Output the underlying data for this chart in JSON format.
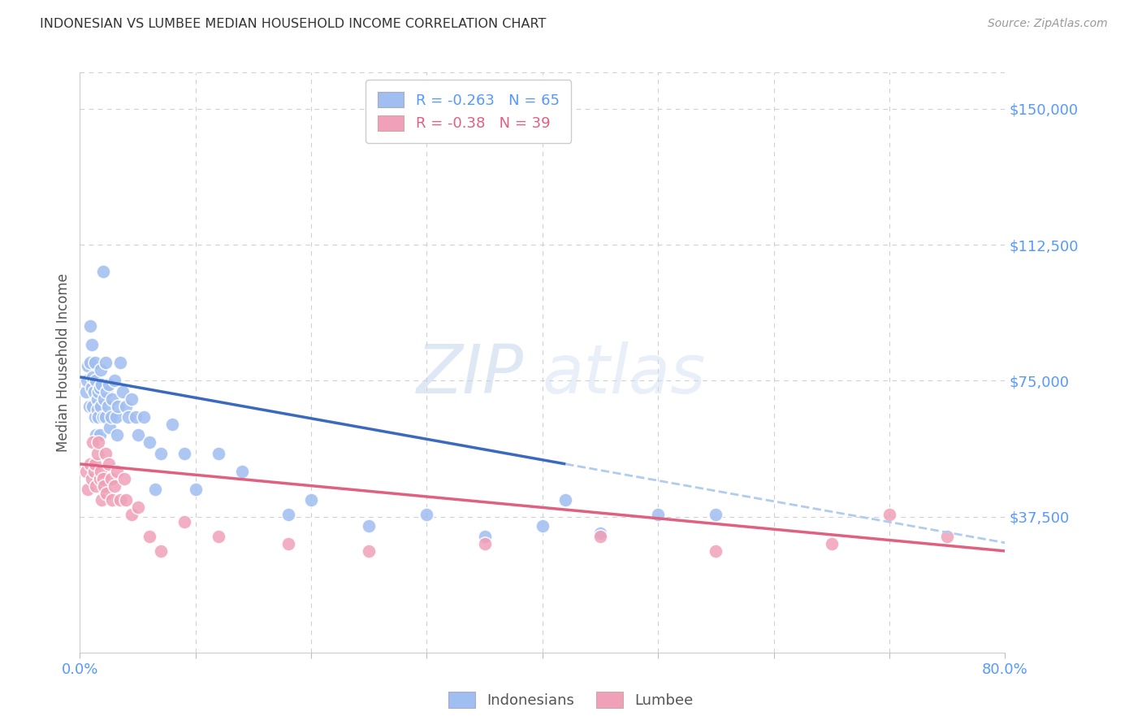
{
  "title": "INDONESIAN VS LUMBEE MEDIAN HOUSEHOLD INCOME CORRELATION CHART",
  "source": "Source: ZipAtlas.com",
  "ylabel": "Median Household Income",
  "xlim": [
    0.0,
    0.8
  ],
  "ylim": [
    0,
    160000
  ],
  "bg_color": "#ffffff",
  "grid_color": "#d0d0d0",
  "indonesian_color": "#a0bef0",
  "lumbee_color": "#f0a0b8",
  "indonesian_line_color": "#3a6abf",
  "lumbee_line_color": "#e06080",
  "dashed_line_color": "#b0ccee",
  "ytick_color": "#5599ff",
  "xtick_color": "#5599ff",
  "r_indonesian": -0.263,
  "n_indonesian": 65,
  "r_lumbee": -0.38,
  "n_lumbee": 39,
  "ytick_vals": [
    37500,
    75000,
    112500,
    150000
  ],
  "ytick_labels": [
    "$37,500",
    "$75,000",
    "$112,500",
    "$150,000"
  ],
  "indo_line_x0": 0.0,
  "indo_line_y0": 76000,
  "indo_line_x1": 0.42,
  "indo_line_y1": 52000,
  "lum_line_x0": 0.0,
  "lum_line_y0": 52000,
  "lum_line_x1": 0.8,
  "lum_line_y1": 28000,
  "dash_line_x0": 0.42,
  "dash_line_x1": 0.8,
  "indonesian_x": [
    0.005,
    0.006,
    0.007,
    0.008,
    0.009,
    0.009,
    0.01,
    0.01,
    0.011,
    0.011,
    0.012,
    0.013,
    0.013,
    0.014,
    0.014,
    0.015,
    0.015,
    0.016,
    0.016,
    0.017,
    0.017,
    0.018,
    0.018,
    0.019,
    0.02,
    0.02,
    0.021,
    0.022,
    0.022,
    0.023,
    0.024,
    0.025,
    0.026,
    0.027,
    0.028,
    0.03,
    0.031,
    0.032,
    0.033,
    0.035,
    0.037,
    0.04,
    0.042,
    0.045,
    0.048,
    0.05,
    0.055,
    0.06,
    0.065,
    0.07,
    0.08,
    0.09,
    0.1,
    0.12,
    0.14,
    0.18,
    0.2,
    0.25,
    0.3,
    0.35,
    0.4,
    0.42,
    0.45,
    0.5,
    0.55
  ],
  "indonesian_y": [
    72000,
    75000,
    79000,
    68000,
    80000,
    90000,
    73000,
    85000,
    76000,
    68000,
    72000,
    80000,
    65000,
    75000,
    60000,
    70000,
    67000,
    72000,
    65000,
    73000,
    60000,
    78000,
    68000,
    74000,
    65000,
    105000,
    70000,
    65000,
    80000,
    72000,
    68000,
    74000,
    62000,
    65000,
    70000,
    75000,
    65000,
    60000,
    68000,
    80000,
    72000,
    68000,
    65000,
    70000,
    65000,
    60000,
    65000,
    58000,
    45000,
    55000,
    63000,
    55000,
    45000,
    55000,
    50000,
    38000,
    42000,
    35000,
    38000,
    32000,
    35000,
    42000,
    33000,
    38000,
    38000
  ],
  "lumbee_x": [
    0.005,
    0.007,
    0.009,
    0.01,
    0.011,
    0.012,
    0.013,
    0.014,
    0.015,
    0.016,
    0.017,
    0.018,
    0.019,
    0.02,
    0.021,
    0.022,
    0.023,
    0.025,
    0.027,
    0.028,
    0.03,
    0.032,
    0.035,
    0.038,
    0.04,
    0.045,
    0.05,
    0.06,
    0.07,
    0.09,
    0.12,
    0.18,
    0.25,
    0.35,
    0.45,
    0.55,
    0.65,
    0.7,
    0.75
  ],
  "lumbee_y": [
    50000,
    45000,
    52000,
    48000,
    58000,
    50000,
    52000,
    46000,
    55000,
    58000,
    48000,
    50000,
    42000,
    48000,
    46000,
    55000,
    44000,
    52000,
    48000,
    42000,
    46000,
    50000,
    42000,
    48000,
    42000,
    38000,
    40000,
    32000,
    28000,
    36000,
    32000,
    30000,
    28000,
    30000,
    32000,
    28000,
    30000,
    38000,
    32000
  ]
}
